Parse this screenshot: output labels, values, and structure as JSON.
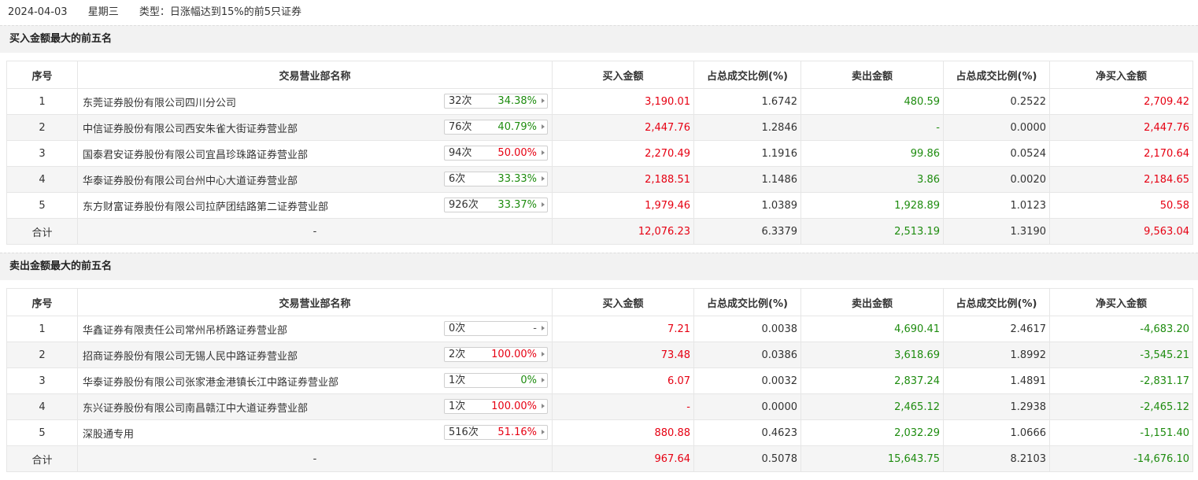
{
  "header": {
    "date": "2024-04-03",
    "weekday": "星期三",
    "type": "类型：日涨幅达到15%的前5只证券"
  },
  "columns": [
    "序号",
    "交易营业部名称",
    "买入金额",
    "占总成交比例(%)",
    "卖出金额",
    "占总成交比例(%)",
    "净买入金额"
  ],
  "buy_section": {
    "title": "买入金额最大的前五名",
    "rows": [
      {
        "no": "1",
        "name": "东莞证券股份有限公司四川分公司",
        "count": "32次",
        "pct": "34.38%",
        "pct_color": "green",
        "buy": "3,190.01",
        "buy_ratio": "1.6742",
        "sell": "480.59",
        "sell_ratio": "0.2522",
        "net": "2,709.42",
        "net_color": "red"
      },
      {
        "no": "2",
        "name": "中信证券股份有限公司西安朱雀大街证券营业部",
        "count": "76次",
        "pct": "40.79%",
        "pct_color": "green",
        "buy": "2,447.76",
        "buy_ratio": "1.2846",
        "sell": "-",
        "sell_ratio": "0.0000",
        "net": "2,447.76",
        "net_color": "red"
      },
      {
        "no": "3",
        "name": "国泰君安证券股份有限公司宜昌珍珠路证券营业部",
        "count": "94次",
        "pct": "50.00%",
        "pct_color": "red",
        "buy": "2,270.49",
        "buy_ratio": "1.1916",
        "sell": "99.86",
        "sell_ratio": "0.0524",
        "net": "2,170.64",
        "net_color": "red"
      },
      {
        "no": "4",
        "name": "华泰证券股份有限公司台州中心大道证券营业部",
        "count": "6次",
        "pct": "33.33%",
        "pct_color": "green",
        "buy": "2,188.51",
        "buy_ratio": "1.1486",
        "sell": "3.86",
        "sell_ratio": "0.0020",
        "net": "2,184.65",
        "net_color": "red"
      },
      {
        "no": "5",
        "name": "东方财富证券股份有限公司拉萨团结路第二证券营业部",
        "count": "926次",
        "pct": "33.37%",
        "pct_color": "green",
        "buy": "1,979.46",
        "buy_ratio": "1.0389",
        "sell": "1,928.89",
        "sell_ratio": "1.0123",
        "net": "50.58",
        "net_color": "red"
      }
    ],
    "total": {
      "label": "合计",
      "name": "-",
      "buy": "12,076.23",
      "buy_ratio": "6.3379",
      "sell": "2,513.19",
      "sell_ratio": "1.3190",
      "net": "9,563.04",
      "net_color": "red"
    }
  },
  "sell_section": {
    "title": "卖出金额最大的前五名",
    "rows": [
      {
        "no": "1",
        "name": "华鑫证券有限责任公司常州吊桥路证券营业部",
        "count": "0次",
        "pct": "-",
        "pct_color": "dash",
        "buy": "7.21",
        "buy_ratio": "0.0038",
        "sell": "4,690.41",
        "sell_ratio": "2.4617",
        "net": "-4,683.20",
        "net_color": "green"
      },
      {
        "no": "2",
        "name": "招商证券股份有限公司无锡人民中路证券营业部",
        "count": "2次",
        "pct": "100.00%",
        "pct_color": "red",
        "buy": "73.48",
        "buy_ratio": "0.0386",
        "sell": "3,618.69",
        "sell_ratio": "1.8992",
        "net": "-3,545.21",
        "net_color": "green"
      },
      {
        "no": "3",
        "name": "华泰证券股份有限公司张家港金港镇长江中路证券营业部",
        "count": "1次",
        "pct": "0%",
        "pct_color": "green",
        "buy": "6.07",
        "buy_ratio": "0.0032",
        "sell": "2,837.24",
        "sell_ratio": "1.4891",
        "net": "-2,831.17",
        "net_color": "green"
      },
      {
        "no": "4",
        "name": "东兴证券股份有限公司南昌赣江中大道证券营业部",
        "count": "1次",
        "pct": "100.00%",
        "pct_color": "red",
        "buy": "-",
        "buy_ratio": "0.0000",
        "sell": "2,465.12",
        "sell_ratio": "1.2938",
        "net": "-2,465.12",
        "net_color": "green"
      },
      {
        "no": "5",
        "name": "深股通专用",
        "count": "516次",
        "pct": "51.16%",
        "pct_color": "red",
        "buy": "880.88",
        "buy_ratio": "0.4623",
        "sell": "2,032.29",
        "sell_ratio": "1.0666",
        "net": "-1,151.40",
        "net_color": "green"
      }
    ],
    "total": {
      "label": "合计",
      "name": "-",
      "buy": "967.64",
      "buy_ratio": "0.5078",
      "sell": "15,643.75",
      "sell_ratio": "8.2103",
      "net": "-14,676.10",
      "net_color": "green"
    }
  },
  "colors": {
    "red": "#e60012",
    "green": "#1e8c0f",
    "stripe": "#f5f5f5",
    "section_bg": "#f2f2f2"
  }
}
